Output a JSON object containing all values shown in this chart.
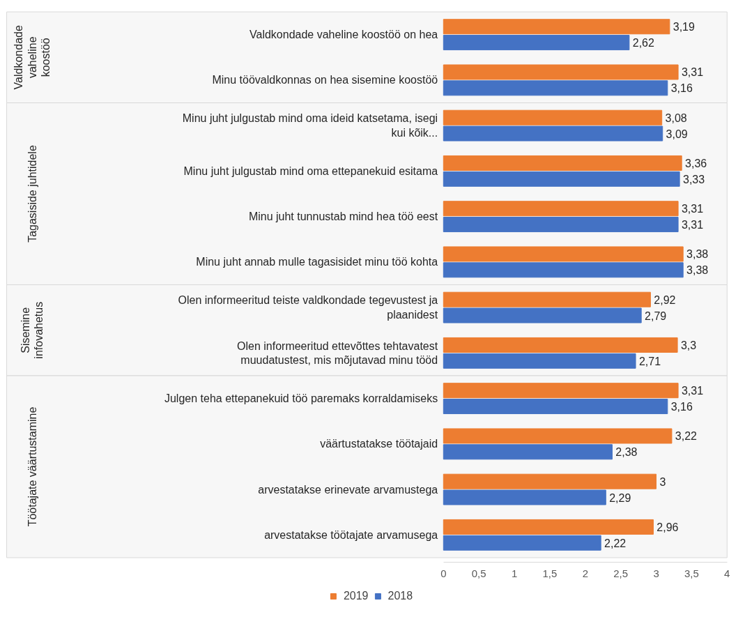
{
  "chart_data": {
    "type": "bar",
    "orientation": "horizontal",
    "categories": [
      "Valdkondade vaheline koostöö on hea",
      "Minu töövaldkonnas on hea sisemine koostöö",
      "Minu juht julgustab mind oma ideid katsetama, isegi kui kõik...",
      "Minu juht julgustab mind oma ettepanekuid esitama",
      "Minu juht tunnustab mind hea töö eest",
      "Minu juht annab mulle tagasisidet minu töö kohta",
      "Olen informeeritud teiste valdkondade tegevustest ja plaanidest",
      "Olen informeeritud ettevõttes tehtavatest muudatustest, mis mõjutavad minu tööd",
      "Julgen teha ettepanekuid töö paremaks korraldamiseks",
      "väärtustatakse töötajaid",
      "arvestatakse erinevate arvamustega",
      "arvestatakse töötajate arvamusega"
    ],
    "series": [
      {
        "name": "2019",
        "color": "#ed7d31",
        "values": [
          3.19,
          3.31,
          3.08,
          3.36,
          3.31,
          3.38,
          2.92,
          3.3,
          3.31,
          3.22,
          3,
          2.96
        ],
        "value_labels": [
          "3,19",
          "3,31",
          "3,08",
          "3,36",
          "3,31",
          "3,38",
          "2,92",
          "3,3",
          "3,31",
          "3,22",
          "3",
          "2,96"
        ]
      },
      {
        "name": "2018",
        "color": "#4472c4",
        "values": [
          2.62,
          3.16,
          3.09,
          3.33,
          3.31,
          3.38,
          2.79,
          2.71,
          3.16,
          2.38,
          2.29,
          2.22
        ],
        "value_labels": [
          "2,62",
          "3,16",
          "3,09",
          "3,33",
          "3,31",
          "3,38",
          "2,79",
          "2,71",
          "3,16",
          "2,38",
          "2,29",
          "2,22"
        ]
      }
    ],
    "xlim": [
      0,
      4
    ],
    "xticks": [
      0,
      {
        "value": 0.5,
        "label": "0,5"
      },
      1,
      {
        "value": 1.5,
        "label": "1,5"
      },
      2,
      {
        "value": 2.5,
        "label": "2,5"
      },
      3,
      {
        "value": 3.5,
        "label": "3,5"
      },
      4
    ],
    "bands": [
      {
        "axis": "y",
        "from": "Valdkondade vaheline koostöö on hea",
        "to": "Minu töövaldkonnas on hea sisemine koostöö",
        "label": "Valdkondade vaheline koostöö",
        "color": "#f7f7f7"
      },
      {
        "axis": "y",
        "from": "Minu juht julgustab mind oma ideid katsetama, isegi kui kõik...",
        "to": "Minu juht annab mulle tagasisidet minu töö kohta",
        "label": "Tagasiside juhtidele",
        "color": "#f7f7f7"
      },
      {
        "axis": "y",
        "from": "Olen informeeritud teiste valdkondade tegevustest ja plaanidest",
        "to": "Olen informeeritud ettevõttes tehtavatest muudatustest, mis mõjutavad minu tööd",
        "label": "Sisemine infovahetus",
        "color": "#f7f7f7"
      },
      {
        "axis": "y",
        "from": "Julgen teha ettepanekuid töö paremaks korraldamiseks",
        "to": "arvestatakse töötajate arvamusega",
        "label": "Töötajate väärtustamine",
        "color": "#f7f7f7"
      }
    ],
    "grid": false,
    "legend": "bottom"
  }
}
